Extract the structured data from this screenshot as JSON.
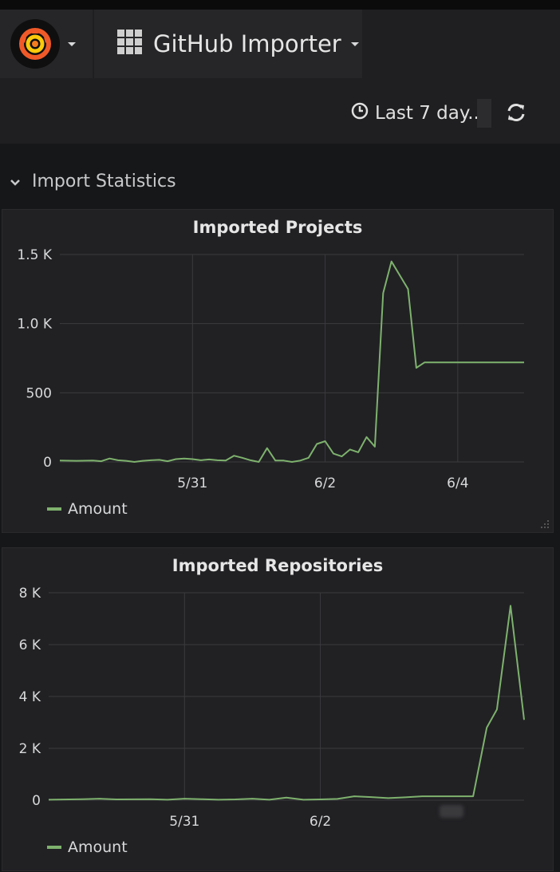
{
  "header": {
    "dashboard_title": "GitHub Importer",
    "time_range": "Last 7 day...",
    "icons": [
      "grafana-logo-icon",
      "chevron-down-icon",
      "dashboard-grid-icon",
      "clock-icon",
      "refresh-icon"
    ]
  },
  "row": {
    "title": "Import Statistics"
  },
  "colors": {
    "series": "#7eb26d",
    "background": "#161719",
    "panel": "#212124",
    "grid": "#3b3b3e"
  },
  "chart_data": [
    {
      "type": "line",
      "title": "Imported Projects",
      "ytick_labels": [
        "0",
        "500",
        "1.0 K",
        "1.5 K"
      ],
      "yticks": [
        0,
        500,
        1000,
        1500
      ],
      "ylim": [
        0,
        1500
      ],
      "xtick_labels": [
        "5/31",
        "6/2",
        "6/4"
      ],
      "xticks": [
        4,
        8,
        12
      ],
      "xlim": [
        0,
        14
      ],
      "legend": "bottom-left",
      "grid": true,
      "series": [
        {
          "name": "Amount",
          "x": [
            0,
            0.5,
            1,
            1.25,
            1.5,
            1.75,
            2,
            2.25,
            2.5,
            2.75,
            3,
            3.25,
            3.5,
            3.75,
            4,
            4.25,
            4.5,
            4.75,
            5,
            5.25,
            5.5,
            5.75,
            6,
            6.25,
            6.5,
            6.75,
            7,
            7.25,
            7.5,
            7.75,
            8,
            8.25,
            8.5,
            8.75,
            9,
            9.25,
            9.5,
            9.75,
            10,
            10.25,
            10.5,
            10.75,
            11,
            11.25,
            11.5,
            11.75,
            12,
            12.25,
            12.5,
            13,
            13.5,
            13.75,
            14
          ],
          "values": [
            10,
            8,
            10,
            5,
            25,
            12,
            8,
            0,
            8,
            12,
            15,
            5,
            20,
            25,
            20,
            12,
            18,
            12,
            10,
            45,
            30,
            12,
            0,
            100,
            10,
            10,
            0,
            10,
            30,
            130,
            150,
            60,
            40,
            90,
            70,
            180,
            110,
            1220,
            1450,
            1350,
            1250,
            680,
            720,
            720,
            720,
            720,
            720,
            720,
            720,
            720,
            720,
            720,
            720
          ]
        }
      ]
    },
    {
      "type": "line",
      "title": "Imported Repositories",
      "ytick_labels": [
        "0",
        "2 K",
        "4 K",
        "6 K",
        "8 K"
      ],
      "yticks": [
        0,
        2000,
        4000,
        6000,
        8000
      ],
      "ylim": [
        0,
        8000
      ],
      "xtick_labels": [
        "5/31",
        "6/2"
      ],
      "xticks": [
        4,
        8
      ],
      "xlim": [
        0,
        14
      ],
      "legend": "bottom-left",
      "grid": true,
      "series": [
        {
          "name": "Amount",
          "x": [
            0,
            1,
            1.5,
            2,
            3,
            3.5,
            4,
            4.5,
            5,
            5.5,
            6,
            6.5,
            7,
            7.5,
            8,
            8.5,
            9,
            9.5,
            10,
            10.5,
            11,
            11.5,
            12,
            12.5,
            12.9,
            13.2,
            13.6,
            14
          ],
          "values": [
            20,
            40,
            60,
            30,
            40,
            20,
            60,
            40,
            20,
            30,
            60,
            20,
            100,
            20,
            30,
            50,
            150,
            120,
            80,
            110,
            150,
            150,
            150,
            150,
            2800,
            3500,
            7500,
            3100
          ]
        }
      ]
    }
  ]
}
